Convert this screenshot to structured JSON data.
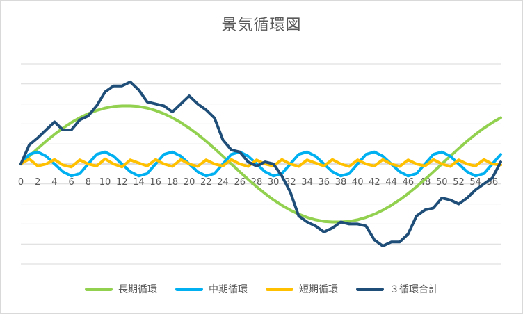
{
  "chart_data": {
    "type": "line",
    "title": "景気循環図",
    "xlabel": "",
    "ylabel": "",
    "grid": true,
    "legend_position": "bottom",
    "x": [
      0,
      1,
      2,
      3,
      4,
      5,
      6,
      7,
      8,
      9,
      10,
      11,
      12,
      13,
      14,
      15,
      16,
      17,
      18,
      19,
      20,
      21,
      22,
      23,
      24,
      25,
      26,
      27,
      28,
      29,
      30,
      31,
      32,
      33,
      34,
      35,
      36,
      37,
      38,
      39,
      40,
      41,
      42,
      43,
      44,
      45,
      46,
      47,
      48,
      49,
      50,
      51,
      52,
      53,
      54,
      55,
      56,
      57
    ],
    "x_tick_labels": [
      "0",
      "2",
      "4",
      "6",
      "8",
      "10",
      "12",
      "14",
      "16",
      "18",
      "20",
      "22",
      "24",
      "26",
      "28",
      "30",
      "32",
      "34",
      "36",
      "38",
      "40",
      "42",
      "44",
      "46",
      "48",
      "50",
      "52",
      "54",
      "56"
    ],
    "ylim": [
      -5,
      5
    ],
    "y_grid_step": 1,
    "series": [
      {
        "name": "長期循環",
        "color": "#92d050",
        "values": [
          0.0,
          0.39,
          0.77,
          1.14,
          1.48,
          1.79,
          2.07,
          2.31,
          2.51,
          2.67,
          2.79,
          2.87,
          2.9,
          2.9,
          2.87,
          2.79,
          2.67,
          2.51,
          2.31,
          2.07,
          1.79,
          1.48,
          1.14,
          0.77,
          0.39,
          0.0,
          -0.39,
          -0.77,
          -1.14,
          -1.48,
          -1.79,
          -2.07,
          -2.31,
          -2.51,
          -2.67,
          -2.79,
          -2.87,
          -2.9,
          -2.9,
          -2.87,
          -2.79,
          -2.67,
          -2.51,
          -2.31,
          -2.07,
          -1.79,
          -1.48,
          -1.14,
          -0.77,
          -0.39,
          0.0,
          0.39,
          0.77,
          1.14,
          1.48,
          1.79,
          2.07,
          2.31
        ]
      },
      {
        "name": "中期循環",
        "color": "#00b0f0",
        "values": [
          0.0,
          0.48,
          0.6,
          0.39,
          0.0,
          -0.39,
          -0.6,
          -0.48,
          0.0,
          0.48,
          0.6,
          0.39,
          0.0,
          -0.39,
          -0.6,
          -0.48,
          0.0,
          0.48,
          0.6,
          0.39,
          0.0,
          -0.39,
          -0.6,
          -0.48,
          0.0,
          0.48,
          0.6,
          0.39,
          0.0,
          -0.39,
          -0.6,
          -0.48,
          0.0,
          0.48,
          0.6,
          0.39,
          0.0,
          -0.39,
          -0.6,
          -0.48,
          0.0,
          0.48,
          0.6,
          0.39,
          0.0,
          -0.39,
          -0.6,
          -0.48,
          0.0,
          0.48,
          0.6,
          0.39,
          0.0,
          -0.39,
          -0.6,
          -0.48,
          0.0,
          0.48
        ]
      },
      {
        "name": "短期循環",
        "color": "#ffc000",
        "values": [
          0.0,
          0.25,
          -0.1,
          0.0,
          0.22,
          -0.05,
          -0.15,
          0.2,
          0.0,
          -0.1,
          0.25,
          0.0,
          -0.15,
          0.2,
          0.05,
          -0.1,
          0.22,
          0.0,
          -0.12,
          0.22,
          0.0,
          -0.12,
          0.2,
          0.0,
          -0.1,
          0.22,
          0.0,
          -0.12,
          0.2,
          0.0,
          -0.1,
          0.22,
          0.0,
          -0.12,
          0.2,
          0.05,
          -0.1,
          0.22,
          0.0,
          -0.12,
          0.2,
          0.0,
          -0.1,
          0.22,
          0.0,
          -0.12,
          0.2,
          0.0,
          -0.1,
          0.22,
          0.0,
          -0.12,
          0.2,
          0.0,
          -0.1,
          0.22,
          0.0,
          -0.05
        ]
      },
      {
        "name": "３循環合計",
        "color": "#1f4e79",
        "values": [
          0.0,
          0.95,
          1.3,
          1.7,
          2.1,
          1.7,
          1.7,
          2.2,
          2.4,
          2.9,
          3.6,
          3.9,
          3.9,
          4.1,
          3.7,
          3.1,
          3.0,
          2.9,
          2.6,
          3.0,
          3.4,
          3.0,
          2.7,
          2.3,
          1.2,
          0.7,
          0.6,
          0.1,
          -0.1,
          0.1,
          0.0,
          -0.6,
          -1.4,
          -2.6,
          -2.9,
          -3.1,
          -3.4,
          -3.2,
          -2.9,
          -3.0,
          -3.0,
          -3.1,
          -3.8,
          -4.1,
          -3.9,
          -3.9,
          -3.5,
          -2.6,
          -2.3,
          -2.2,
          -1.7,
          -1.8,
          -2.0,
          -1.7,
          -1.3,
          -1.0,
          -0.7,
          0.1
        ]
      }
    ]
  }
}
